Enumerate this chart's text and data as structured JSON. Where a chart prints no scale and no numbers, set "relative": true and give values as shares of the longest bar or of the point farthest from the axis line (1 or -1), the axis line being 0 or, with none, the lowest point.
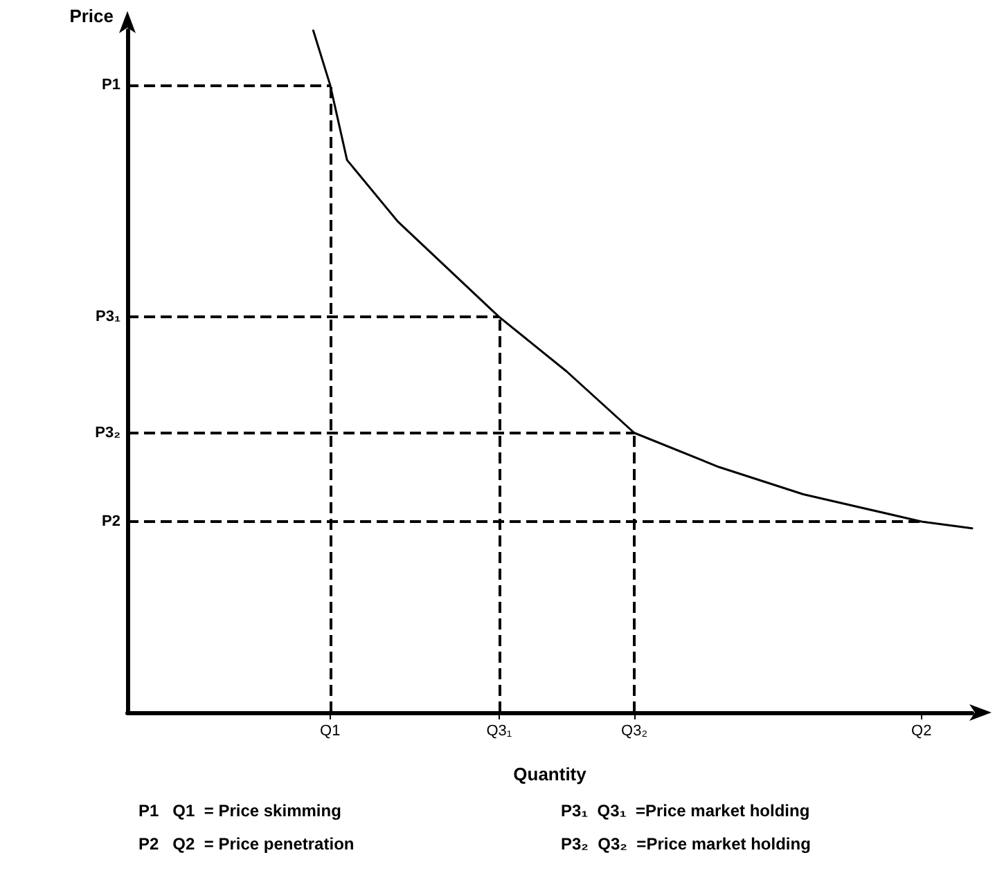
{
  "chart_data": {
    "type": "line",
    "relative": true,
    "xlabel": "Quantity",
    "ylabel": "Price",
    "categories": [
      null,
      null,
      null,
      null,
      null,
      null,
      null,
      null,
      null,
      null,
      null,
      null,
      "Q1",
      null,
      null,
      null,
      null,
      null,
      null,
      null,
      null,
      null,
      "Q3₁",
      null,
      null,
      null,
      null,
      null,
      null,
      null,
      "Q3₂",
      null,
      null,
      null,
      null,
      null,
      null,
      null,
      null,
      null,
      null,
      null,
      null,
      null,
      null,
      null,
      null,
      "Q2",
      null,
      null,
      null
    ],
    "series": [
      {
        "color": "#000000",
        "values": [
          null,
          null,
          null,
          null,
          null,
          null,
          null,
          null,
          null,
          null,
          null,
          1.0,
          0.92,
          0.81,
          null,
          null,
          0.72,
          null,
          null,
          0.65,
          null,
          null,
          0.58,
          null,
          null,
          null,
          0.5,
          null,
          null,
          null,
          0.41,
          null,
          null,
          null,
          null,
          0.36,
          null,
          null,
          null,
          null,
          0.32,
          null,
          null,
          null,
          null,
          null,
          null,
          0.28,
          null,
          null,
          0.27
        ]
      }
    ],
    "ref_lines": [
      {
        "axis": "y",
        "value": 0.92,
        "label": "P1",
        "line_style": "dashed",
        "color": "#000000"
      },
      {
        "axis": "y",
        "value": 0.58,
        "label": "P3₁",
        "line_style": "dashed",
        "color": "#000000"
      },
      {
        "axis": "y",
        "value": 0.41,
        "label": "P3₂",
        "line_style": "dashed",
        "color": "#000000"
      },
      {
        "axis": "y",
        "value": 0.28,
        "label": "P2",
        "line_style": "dashed",
        "color": "#000000"
      },
      {
        "axis": "x",
        "value": "Q1",
        "line_style": "dashed",
        "color": "#000000"
      },
      {
        "axis": "x",
        "value": "Q3₁",
        "line_style": "dashed",
        "color": "#000000"
      },
      {
        "axis": "x",
        "value": "Q3₂",
        "line_style": "dashed",
        "color": "#000000"
      }
    ],
    "annotations": [
      "P1   Q1  = Price skimming",
      "P2   Q2  = Price penetration",
      "P3₁  Q3₁  =Price market holding",
      "P3₂  Q3₂  =Price market holding"
    ],
    "grid": false,
    "marker": "none",
    "line_style": "solid"
  }
}
